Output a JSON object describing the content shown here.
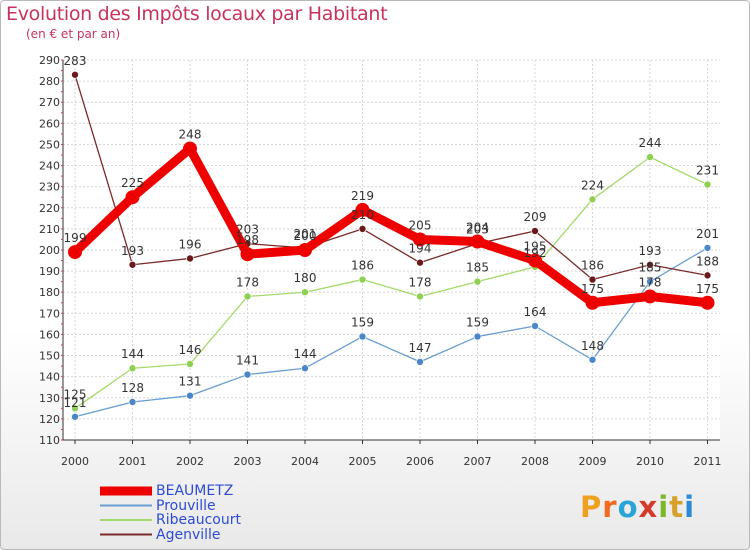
{
  "title": "Evolution des Impôts locaux par Habitant",
  "subtitle": "(en € et par an)",
  "logo": {
    "letters": [
      "P",
      "r",
      "o",
      "x",
      "i",
      "t",
      "i"
    ],
    "colors": [
      "#f0a020",
      "#f06a20",
      "#2aa4d6",
      "#d63a2a",
      "#7ab72a",
      "#d6a02a",
      "#2a8ad6"
    ]
  },
  "chart_data": {
    "type": "line",
    "title": "Evolution des Impôts locaux par Habitant",
    "subtitle": "(en € et par an)",
    "categories": [
      "2000",
      "2001",
      "2002",
      "2003",
      "2004",
      "2005",
      "2006",
      "2007",
      "2008",
      "2009",
      "2010",
      "2011"
    ],
    "ylim": [
      110,
      290
    ],
    "yticks": [
      110,
      120,
      130,
      140,
      150,
      160,
      170,
      180,
      190,
      200,
      210,
      220,
      230,
      240,
      250,
      260,
      270,
      280,
      290
    ],
    "grid": true,
    "legend_position": "bottom-left",
    "series": [
      {
        "name": "BEAUMETZ",
        "color": "#ee0000",
        "values": [
          199,
          225,
          248,
          198,
          200,
          219,
          205,
          204,
          195,
          175,
          178,
          175
        ],
        "labels": [
          "199",
          "225",
          "248",
          "198",
          "200",
          "219",
          "205",
          "204",
          "195",
          "175",
          "178",
          "175"
        ]
      },
      {
        "name": "Prouville",
        "color": "#6a9ed2",
        "values": [
          121,
          128,
          131,
          141,
          144,
          159,
          147,
          159,
          164,
          148,
          185,
          201
        ],
        "labels": [
          "121",
          "128",
          "131",
          "141",
          "144",
          "159",
          "147",
          "159",
          "164",
          "148",
          "185",
          "201"
        ]
      },
      {
        "name": "Ribeaucourt",
        "color": "#a4d96c",
        "values": [
          125,
          144,
          146,
          178,
          180,
          186,
          178,
          185,
          192,
          224,
          244,
          231
        ],
        "labels": [
          "125",
          "144",
          "146",
          "178",
          "180",
          "186",
          "178",
          "185",
          "192",
          "224",
          "244",
          "231"
        ]
      },
      {
        "name": "Agenville",
        "color": "#7a2a2a",
        "values": [
          283,
          193,
          196,
          203,
          201,
          210,
          194,
          203,
          209,
          186,
          193,
          188
        ],
        "labels": [
          "283",
          "193",
          "196",
          "203",
          "201",
          "210",
          "194",
          "203",
          "209",
          "186",
          "193",
          "188"
        ]
      }
    ]
  }
}
